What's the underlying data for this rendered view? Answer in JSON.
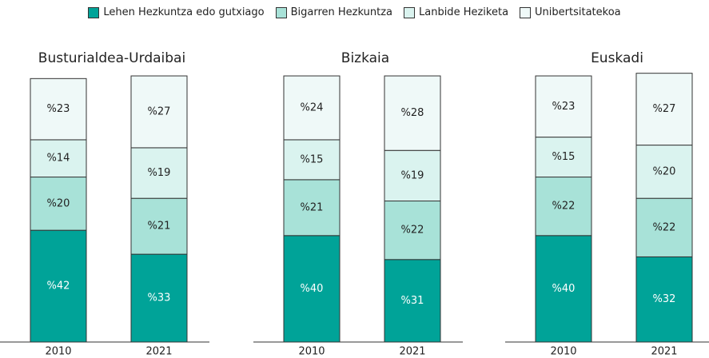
{
  "chart_data": [
    {
      "type": "bar",
      "stacked": true,
      "title": "Busturialdea-Urdaibai",
      "categories": [
        "2010",
        "2021"
      ],
      "ylim": [
        0,
        100
      ],
      "series": [
        {
          "name": "Lehen Hezkuntza edo gutxiago",
          "color": "#00a398",
          "values": [
            42,
            33
          ],
          "value_labels": [
            "%42",
            "%33"
          ]
        },
        {
          "name": "Bigarren Hezkuntza",
          "color": "#a8e2d8",
          "values": [
            20,
            21
          ],
          "value_labels": [
            "%20",
            "%21"
          ]
        },
        {
          "name": "Lanbide Heziketa",
          "color": "#daf3ef",
          "values": [
            14,
            19
          ],
          "value_labels": [
            "%14",
            "%19"
          ]
        },
        {
          "name": "Unibertsitatekoa",
          "color": "#eff9f8",
          "values": [
            23,
            27
          ],
          "value_labels": [
            "%23",
            "%27"
          ]
        }
      ]
    },
    {
      "type": "bar",
      "stacked": true,
      "title": "Bizkaia",
      "categories": [
        "2010",
        "2021"
      ],
      "ylim": [
        0,
        100
      ],
      "series": [
        {
          "name": "Lehen Hezkuntza edo gutxiago",
          "color": "#00a398",
          "values": [
            40,
            31
          ],
          "value_labels": [
            "%40",
            "%31"
          ]
        },
        {
          "name": "Bigarren Hezkuntza",
          "color": "#a8e2d8",
          "values": [
            21,
            22
          ],
          "value_labels": [
            "%21",
            "%22"
          ]
        },
        {
          "name": "Lanbide Heziketa",
          "color": "#daf3ef",
          "values": [
            15,
            19
          ],
          "value_labels": [
            "%15",
            "%19"
          ]
        },
        {
          "name": "Unibertsitatekoa",
          "color": "#eff9f8",
          "values": [
            24,
            28
          ],
          "value_labels": [
            "%24",
            "%28"
          ]
        }
      ]
    },
    {
      "type": "bar",
      "stacked": true,
      "title": "Euskadi",
      "categories": [
        "2010",
        "2021"
      ],
      "ylim": [
        0,
        100
      ],
      "series": [
        {
          "name": "Lehen Hezkuntza edo gutxiago",
          "color": "#00a398",
          "values": [
            40,
            32
          ],
          "value_labels": [
            "%40",
            "%32"
          ]
        },
        {
          "name": "Bigarren Hezkuntza",
          "color": "#a8e2d8",
          "values": [
            22,
            22
          ],
          "value_labels": [
            "%22",
            "%22"
          ]
        },
        {
          "name": "Lanbide Heziketa",
          "color": "#daf3ef",
          "values": [
            15,
            20
          ],
          "value_labels": [
            "%15",
            "%20"
          ]
        },
        {
          "name": "Unibertsitatekoa",
          "color": "#eff9f8",
          "values": [
            23,
            27
          ],
          "value_labels": [
            "%23",
            "%27"
          ]
        }
      ]
    }
  ]
}
